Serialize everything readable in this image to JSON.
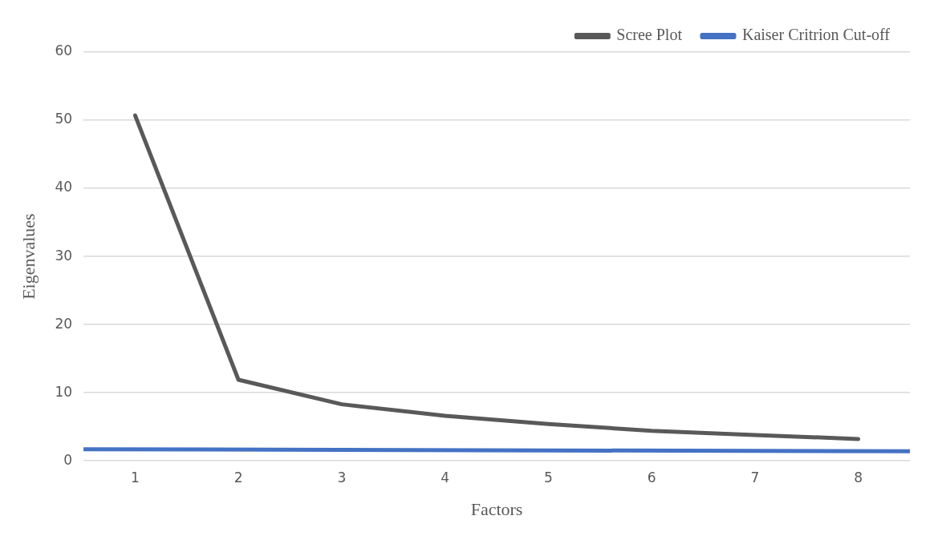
{
  "chart_data": {
    "type": "line",
    "xlabel": "Factors",
    "ylabel": "Eigenvalues",
    "xlim": [
      0.5,
      8.5
    ],
    "xticks": [
      1,
      2,
      3,
      4,
      5,
      6,
      7,
      8
    ],
    "ylim": [
      0,
      60
    ],
    "yticks": [
      0,
      10,
      20,
      30,
      40,
      50,
      60
    ],
    "grid": "y",
    "legend": "top right",
    "marker": "none",
    "line_style": "solid",
    "series": [
      {
        "name": "Scree Plot",
        "color": "#595959",
        "x": [
          1,
          2,
          3,
          4,
          5,
          6,
          7,
          8
        ],
        "values": [
          50.7,
          11.9,
          8.3,
          6.6,
          5.4,
          4.4,
          3.8,
          3.2
        ]
      },
      {
        "name": "Kaiser Critrion Cut-off",
        "color": "#4472c4",
        "x": [
          0.5,
          8.5
        ],
        "values": [
          1.7,
          1.4
        ]
      }
    ]
  }
}
